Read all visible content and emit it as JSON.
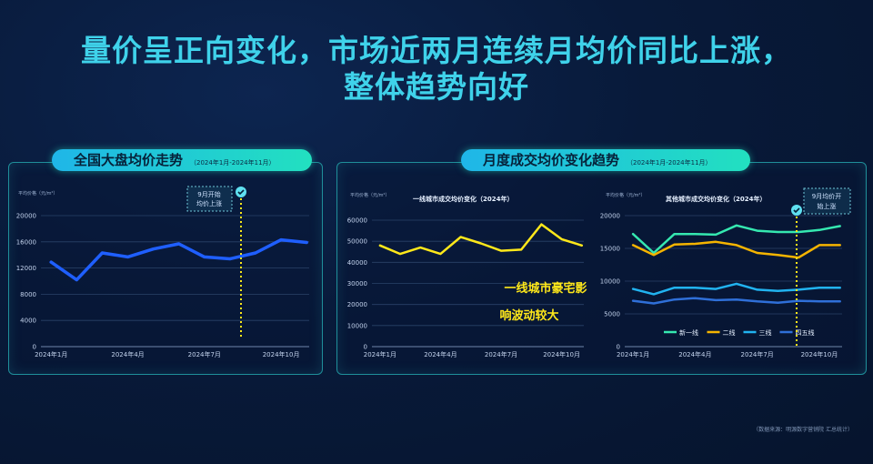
{
  "header": {
    "line1": "量价呈正向变化，市场近两月连续月均价同比上涨，",
    "line2": "整体趋势向好"
  },
  "left_panel": {
    "title": "全国大盘均价走势",
    "subtitle": "（2024年1月-2024年11月）",
    "unit": "平均价格（元/m²）",
    "note_line1": "9月开始",
    "note_line2": "均价上涨"
  },
  "right_panel": {
    "title": "月度成交均价变化趋势",
    "subtitle": "（2024年1月-2024年11月）",
    "annotation_line1": "一线城市豪宅影",
    "annotation_line2": "响波动较大",
    "note_line1": "9月均价开",
    "note_line2": "始上涨"
  },
  "source_text": "（数据来源：明源数字营销院 汇总统计）",
  "colors": {
    "accent": "#3fd2ea",
    "national_line": "#1f5fff",
    "tier1_line": "#ffe81a",
    "new_tier1": "#35e8b0",
    "tier2": "#f5b400",
    "tier3": "#21b3f0",
    "tier45": "#2f6fd8"
  },
  "chart_data": [
    {
      "type": "line",
      "title": "",
      "ylabel": "平均价格（元/m²）",
      "x": [
        1,
        2,
        3,
        4,
        5,
        6,
        7,
        8,
        9,
        10,
        11
      ],
      "xtick_labels": [
        "2024年1月",
        "2024年4月",
        "2024年7月",
        "2024年10月"
      ],
      "xtick_positions": [
        1,
        4,
        7,
        10
      ],
      "ylim": [
        0,
        20000
      ],
      "yticks": [
        0,
        4000,
        8000,
        12000,
        16000,
        20000
      ],
      "grid": true,
      "series": [
        {
          "values": [
            12900,
            10200,
            14300,
            13700,
            14900,
            15700,
            13700,
            13400,
            14300,
            16300,
            15900
          ]
        }
      ]
    },
    {
      "type": "line",
      "title": "一线城市成交均价变化（2024年）",
      "ylabel": "平均价格（元/m²）",
      "x": [
        1,
        2,
        3,
        4,
        5,
        6,
        7,
        8,
        9,
        10,
        11
      ],
      "xtick_labels": [
        "2024年1月",
        "2024年4月",
        "2024年7月",
        "2024年10月"
      ],
      "xtick_positions": [
        1,
        4,
        7,
        10
      ],
      "ylim": [
        0,
        60000
      ],
      "yticks": [
        0,
        10000,
        20000,
        30000,
        40000,
        50000,
        60000
      ],
      "grid": true,
      "series": [
        {
          "values": [
            48000,
            44000,
            47000,
            44000,
            52000,
            49000,
            45500,
            46000,
            58000,
            51000,
            48000
          ]
        }
      ]
    },
    {
      "type": "line",
      "title": "其他城市成交均价变化（2024年）",
      "ylabel": "平均价格（元/m²）",
      "x": [
        1,
        2,
        3,
        4,
        5,
        6,
        7,
        8,
        9,
        10,
        11
      ],
      "xtick_labels": [
        "2024年1月",
        "2024年4月",
        "2024年7月",
        "2024年10月"
      ],
      "xtick_positions": [
        1,
        4,
        7,
        10
      ],
      "ylim": [
        0,
        20000
      ],
      "yticks": [
        0,
        5000,
        10000,
        15000,
        20000
      ],
      "grid": true,
      "legend": "bottom",
      "series": [
        {
          "name": "新一线",
          "values": [
            17200,
            14300,
            17200,
            17200,
            17100,
            18500,
            17700,
            17500,
            17500,
            17800,
            18400
          ]
        },
        {
          "name": "二线",
          "values": [
            15500,
            14000,
            15600,
            15700,
            16000,
            15500,
            14300,
            14000,
            13600,
            15500,
            15500
          ]
        },
        {
          "name": "三线",
          "values": [
            8800,
            8000,
            9000,
            9000,
            8800,
            9600,
            8700,
            8500,
            8700,
            9000,
            9000
          ]
        },
        {
          "name": "四五线",
          "values": [
            7000,
            6600,
            7200,
            7400,
            7100,
            7200,
            6900,
            6700,
            7000,
            6900,
            6900
          ]
        }
      ]
    }
  ]
}
